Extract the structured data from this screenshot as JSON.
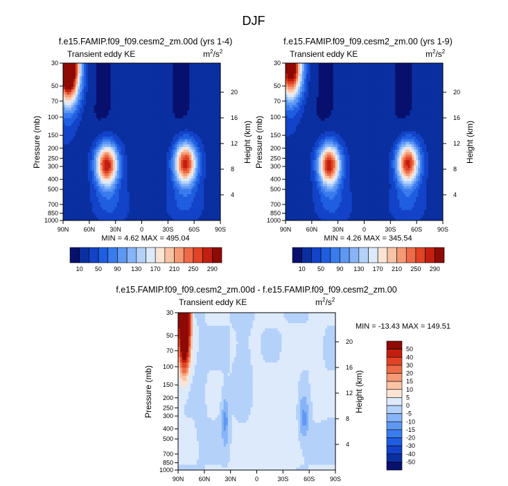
{
  "figure": {
    "title": "DJF"
  },
  "chart_data": [
    {
      "type": "heatmap",
      "title": "f.e15.FAMIP.f09_f09.cesm2_zm.00d (yrs 1-4)",
      "subtitle_left": "Transient eddy KE",
      "subtitle_right": "m2/s2",
      "units_base": "m",
      "units_sup": "2",
      "units_mid": "/s",
      "units_sup2": "2",
      "xlabel": "",
      "ylabel": "Pressure (mb)",
      "ylabel_right": "Height (km)",
      "x_ticks": [
        "90N",
        "60N",
        "30N",
        "0",
        "30S",
        "60S",
        "90S"
      ],
      "y_ticks": [
        "30",
        "50",
        "70",
        "100",
        "150",
        "200",
        "250",
        "300",
        "400",
        "500",
        "700",
        "850",
        "1000"
      ],
      "y_tick_values": [
        30,
        50,
        70,
        100,
        150,
        200,
        250,
        300,
        400,
        500,
        700,
        850,
        1000
      ],
      "y_right_ticks": [
        "20",
        "16",
        "12",
        "8",
        "4"
      ],
      "y_right_values": [
        20,
        16,
        12,
        8,
        4
      ],
      "min_max_text": "MIN =   4.62  MAX = 495.04",
      "min": 4.62,
      "max": 495.04,
      "blobs": [
        {
          "lat": 40,
          "p": 290,
          "amp": 275,
          "slat": 9,
          "slp": 0.33
        },
        {
          "lat": -50,
          "p": 280,
          "amp": 270,
          "slat": 9,
          "slp": 0.33
        },
        {
          "lat": 84,
          "p": 32,
          "amp": 420,
          "slat": 9,
          "slp": 0.55
        }
      ],
      "levels": [
        10,
        30,
        50,
        70,
        90,
        110,
        130,
        150,
        170,
        190,
        210,
        230,
        250,
        270,
        290
      ],
      "colorbar_labels": [
        "10",
        "50",
        "90",
        "130",
        "170",
        "210",
        "250",
        "290"
      ]
    },
    {
      "type": "heatmap",
      "title": "f.e15.FAMIP.f09_f09.cesm2_zm.00 (yrs 1-9)",
      "subtitle_left": "Transient eddy KE",
      "units_base": "m",
      "units_sup": "2",
      "units_mid": "/s",
      "units_sup2": "2",
      "xlabel": "",
      "ylabel": "Pressure (mb)",
      "ylabel_right": "Height (km)",
      "x_ticks": [
        "90N",
        "60N",
        "30N",
        "0",
        "30S",
        "60S",
        "90S"
      ],
      "y_ticks": [
        "30",
        "50",
        "70",
        "100",
        "150",
        "200",
        "250",
        "300",
        "400",
        "500",
        "700",
        "850",
        "1000"
      ],
      "y_tick_values": [
        30,
        50,
        70,
        100,
        150,
        200,
        250,
        300,
        400,
        500,
        700,
        850,
        1000
      ],
      "y_right_ticks": [
        "20",
        "16",
        "12",
        "8",
        "4"
      ],
      "y_right_values": [
        20,
        16,
        12,
        8,
        4
      ],
      "min_max_text": "MIN =   4.26  MAX = 345.54",
      "min": 4.26,
      "max": 345.54,
      "blobs": [
        {
          "lat": 40,
          "p": 290,
          "amp": 270,
          "slat": 9,
          "slp": 0.33
        },
        {
          "lat": -50,
          "p": 280,
          "amp": 265,
          "slat": 9,
          "slp": 0.33
        },
        {
          "lat": 84,
          "p": 32,
          "amp": 320,
          "slat": 9,
          "slp": 0.5
        }
      ],
      "levels": [
        10,
        30,
        50,
        70,
        90,
        110,
        130,
        150,
        170,
        190,
        210,
        230,
        250,
        270,
        290
      ],
      "colorbar_labels": [
        "10",
        "50",
        "90",
        "130",
        "170",
        "210",
        "250",
        "290"
      ]
    },
    {
      "type": "heatmap",
      "title": "f.e15.FAMIP.f09_f09.cesm2_zm.00d - f.e15.FAMIP.f09_f09.cesm2_zm.00",
      "subtitle_left": "Transient eddy KE",
      "units_base": "m",
      "units_sup": "2",
      "units_mid": "/s",
      "units_sup2": "2",
      "xlabel": "",
      "ylabel": "Pressure (mb)",
      "ylabel_right": "Height (km)",
      "x_ticks": [
        "90N",
        "60N",
        "30N",
        "0",
        "30S",
        "60S",
        "90S"
      ],
      "y_ticks": [
        "30",
        "50",
        "70",
        "100",
        "150",
        "200",
        "250",
        "300",
        "400",
        "500",
        "700",
        "850",
        "1000"
      ],
      "y_tick_values": [
        30,
        50,
        70,
        100,
        150,
        200,
        250,
        300,
        400,
        500,
        700,
        850,
        1000
      ],
      "y_right_ticks": [
        "20",
        "16",
        "12",
        "8",
        "4"
      ],
      "y_right_values": [
        20,
        16,
        12,
        8,
        4
      ],
      "min_max_text": "MIN = -13.43  MAX = 149.51",
      "min": -13.43,
      "max": 149.51,
      "blobs": [
        {
          "lat": 83,
          "p": 35,
          "amp": 150,
          "slat": 4,
          "slp": 0.6
        },
        {
          "lat": 36,
          "p": 330,
          "amp": -12,
          "slat": 3,
          "slp": 0.4
        },
        {
          "lat": -54,
          "p": 320,
          "amp": -12,
          "slat": 4,
          "slp": 0.35
        },
        {
          "lat": -42,
          "p": 180,
          "amp": 4,
          "slat": 4,
          "slp": 0.6
        },
        {
          "lat": -70,
          "p": 60,
          "amp": 5,
          "slat": 4,
          "slp": 0.8
        },
        {
          "lat": 15,
          "p": 120,
          "amp": -4,
          "slat": 6,
          "slp": 0.8
        },
        {
          "lat": 65,
          "p": 200,
          "amp": -4,
          "slat": 3,
          "slp": 0.7
        },
        {
          "lat": -5,
          "p": 600,
          "amp": 2,
          "slat": 20,
          "slp": 1.5
        }
      ],
      "levels": [
        -50,
        -40,
        -30,
        -20,
        -15,
        -10,
        -5,
        0,
        5,
        10,
        15,
        20,
        30,
        40,
        50
      ],
      "colorbar_labels": [
        "50",
        "40",
        "30",
        "20",
        "15",
        "10",
        "5",
        "0",
        "-5",
        "-10",
        "-15",
        "-20",
        "-30",
        "-40",
        "-50"
      ]
    }
  ],
  "colors": {
    "scale": [
      "#08106e",
      "#0a2fa0",
      "#1243c8",
      "#1f5ee0",
      "#3a7bee",
      "#5e98f3",
      "#86b4f7",
      "#b4d1fa",
      "#dceafb",
      "#fbe4d3",
      "#f9c3a5",
      "#f59a75",
      "#ee6b48",
      "#e04325",
      "#c21f10",
      "#8e0a05"
    ]
  }
}
